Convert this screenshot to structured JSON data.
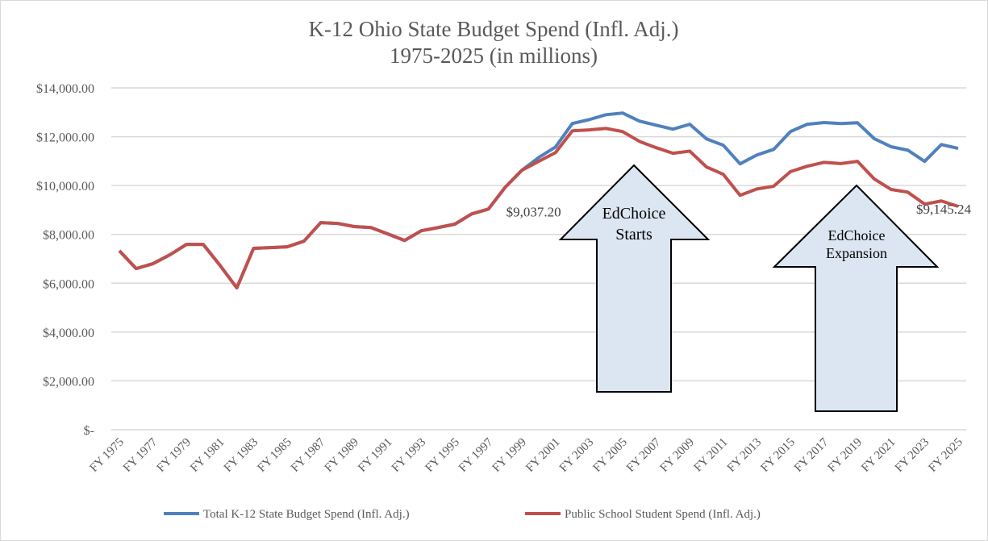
{
  "chart_data": {
    "type": "line",
    "title": [
      "K-12 Ohio State Budget Spend (Infl. Adj.)",
      "1975-2025 (in millions)"
    ],
    "xlabel": "",
    "ylabel": "",
    "ylim": [
      0,
      14000
    ],
    "yticks": [
      0,
      2000,
      4000,
      6000,
      8000,
      10000,
      12000,
      14000
    ],
    "ytick_labels": [
      "$-",
      "$2,000.00",
      "$4,000.00",
      "$6,000.00",
      "$8,000.00",
      "$10,000.00",
      "$12,000.00",
      "$14,000.00"
    ],
    "grid": true,
    "legend_position": "bottom",
    "x": [
      "FY 1975",
      "FY 1976",
      "FY 1977",
      "FY 1978",
      "FY 1979",
      "FY 1980",
      "FY 1981",
      "FY 1982",
      "FY 1983",
      "FY 1984",
      "FY 1985",
      "FY 1986",
      "FY 1987",
      "FY 1988",
      "FY 1989",
      "FY 1990",
      "FY 1991",
      "FY 1992",
      "FY 1993",
      "FY 1994",
      "FY 1995",
      "FY 1996",
      "FY 1997",
      "FY 1998",
      "FY 1999",
      "FY 2000",
      "FY 2001",
      "FY 2002",
      "FY 2003",
      "FY 2004",
      "FY 2005",
      "FY 2006",
      "FY 2007",
      "FY 2008",
      "FY 2009",
      "FY 2010",
      "FY 2011",
      "FY 2012",
      "FY 2013",
      "FY 2014",
      "FY 2015",
      "FY 2016",
      "FY 2017",
      "FY 2018",
      "FY 2019",
      "FY 2020",
      "FY 2021",
      "FY 2022",
      "FY 2023",
      "FY 2024",
      "FY 2025"
    ],
    "series": [
      {
        "name": "Total K-12 State Budget Spend (Infl. Adj.)",
        "color": "#4f81bd",
        "values": [
          7330,
          6600,
          6800,
          7160,
          7590,
          7590,
          6730,
          5810,
          7430,
          7460,
          7490,
          7720,
          8480,
          8450,
          8320,
          8280,
          8020,
          7750,
          8150,
          8280,
          8420,
          8840,
          9037.2,
          9930,
          10630,
          11150,
          11580,
          12540,
          12700,
          12900,
          12970,
          12640,
          12470,
          12310,
          12510,
          11910,
          11650,
          10890,
          11250,
          11480,
          12210,
          12510,
          12580,
          12540,
          12570,
          11920,
          11590,
          11450,
          10990,
          11680,
          11520
        ]
      },
      {
        "name": "Public School Student Spend (Infl. Adj.)",
        "color": "#c0504d",
        "values": [
          7330,
          6600,
          6800,
          7160,
          7590,
          7590,
          6730,
          5810,
          7430,
          7460,
          7490,
          7720,
          8480,
          8450,
          8320,
          8280,
          8020,
          7750,
          8150,
          8280,
          8420,
          8840,
          9037.2,
          9930,
          10630,
          10990,
          11350,
          12240,
          12280,
          12340,
          12210,
          11810,
          11550,
          11320,
          11410,
          10760,
          10460,
          9600,
          9860,
          9970,
          10570,
          10790,
          10950,
          10900,
          10990,
          10270,
          9840,
          9730,
          9240,
          9370,
          9145.24
        ]
      }
    ],
    "data_labels": [
      {
        "x": "FY 1997",
        "series": 1,
        "text": "$9,037.20"
      },
      {
        "x": "FY 2025",
        "series": 1,
        "text": "$9,145.24"
      }
    ],
    "annotations": [
      {
        "text": [
          "EdChoice",
          "Starts"
        ],
        "points_to": "FY 2005",
        "fill": "#dce6f2"
      },
      {
        "text": [
          "EdChoice",
          "Expansion"
        ],
        "points_to": "FY 2019",
        "fill": "#dce6f2"
      }
    ]
  }
}
